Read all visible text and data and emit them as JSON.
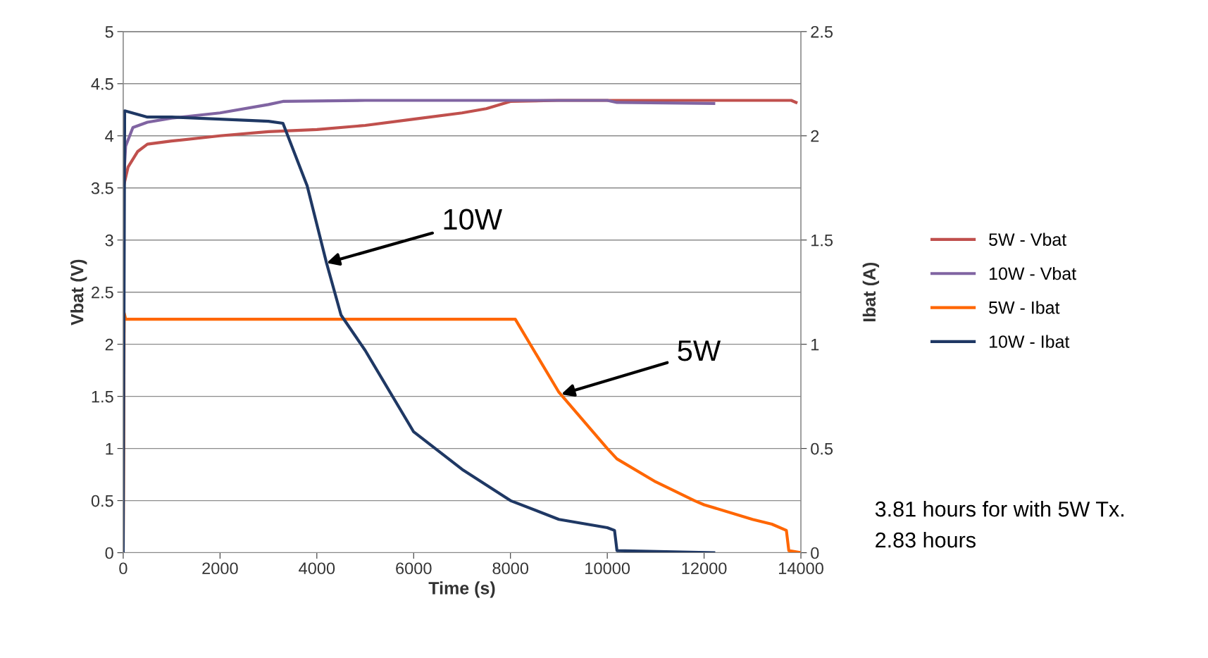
{
  "chart_data": {
    "type": "line",
    "xlabel": "Time (s)",
    "ylabel": "Vbat (V)",
    "y2label": "Ibat (A)",
    "xlim": [
      0,
      14000
    ],
    "xticks": [
      0,
      2000,
      4000,
      6000,
      8000,
      10000,
      12000,
      14000
    ],
    "ylim": [
      0,
      5
    ],
    "yticks": [
      0,
      0.5,
      1,
      1.5,
      2,
      2.5,
      3,
      3.5,
      4,
      4.5,
      5
    ],
    "y2lim": [
      0,
      2.5
    ],
    "y2ticks": [
      0,
      0.5,
      1,
      1.5,
      2,
      2.5
    ],
    "grid": "y",
    "legend": "right",
    "marker": "none",
    "line_style": "solid",
    "series": [
      {
        "name": "5W - Vbat",
        "color": "#c0504d",
        "x": [
          0,
          100,
          300,
          500,
          1000,
          2000,
          3000,
          4000,
          5000,
          6000,
          7000,
          7500,
          8000,
          9000,
          10000,
          12000,
          13800,
          13900
        ],
        "values": [
          3.5,
          3.7,
          3.85,
          3.92,
          3.95,
          4.0,
          4.04,
          4.06,
          4.1,
          4.16,
          4.22,
          4.26,
          4.33,
          4.34,
          4.34,
          4.34,
          4.34,
          4.32
        ]
      },
      {
        "name": "10W - Vbat",
        "color": "#8064a2",
        "x": [
          0,
          50,
          200,
          500,
          1000,
          2000,
          3000,
          3300,
          5000,
          8000,
          10000,
          10200,
          12200
        ],
        "values": [
          3.5,
          3.9,
          4.08,
          4.13,
          4.17,
          4.22,
          4.3,
          4.33,
          4.34,
          4.34,
          4.34,
          4.32,
          4.31
        ]
      },
      {
        "name": "5W - Ibat",
        "color": "#ff6600",
        "axis": "y2",
        "x": [
          0,
          20,
          50,
          2000,
          4000,
          6000,
          8000,
          8100,
          9000,
          10000,
          10200,
          11000,
          11800,
          12000,
          13000,
          13400,
          13700,
          13750,
          14000
        ],
        "values": [
          0,
          1.15,
          1.12,
          1.12,
          1.12,
          1.12,
          1.12,
          1.12,
          0.77,
          0.5,
          0.45,
          0.34,
          0.25,
          0.23,
          0.16,
          0.137,
          0.107,
          0.01,
          0
        ]
      },
      {
        "name": "10W - Ibat",
        "color": "#1f3864",
        "axis": "y2",
        "x": [
          0,
          30,
          500,
          1000,
          2000,
          3000,
          3300,
          3800,
          4200,
          4500,
          5000,
          6000,
          7000,
          8000,
          9000,
          10000,
          10150,
          10200,
          12200
        ],
        "values": [
          0,
          2.12,
          2.09,
          2.09,
          2.08,
          2.07,
          2.06,
          1.76,
          1.39,
          1.14,
          0.97,
          0.58,
          0.4,
          0.25,
          0.16,
          0.12,
          0.107,
          0.01,
          0
        ]
      }
    ],
    "annotations": [
      {
        "text": "10W",
        "x": 4200,
        "y": 2.78
      },
      {
        "text": "5W",
        "x": 9050,
        "y": 1.52
      },
      "3.81 hours for with 5W Tx.",
      "2.83 hours"
    ]
  }
}
